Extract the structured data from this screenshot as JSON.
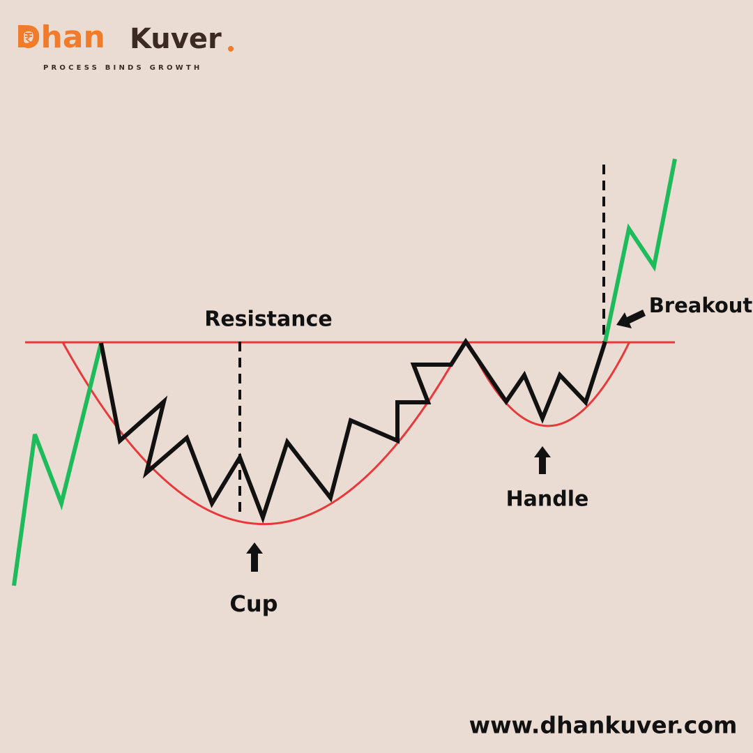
{
  "brand": {
    "name_first": "Dhan",
    "name_second": "Kuver",
    "tagline": "PROCESS BINDS GROWTH"
  },
  "labels": {
    "resistance": "Resistance",
    "cup": "Cup",
    "handle": "Handle",
    "breakout": "Breakout"
  },
  "footer": {
    "url": "www.dhankuver.com"
  }
}
